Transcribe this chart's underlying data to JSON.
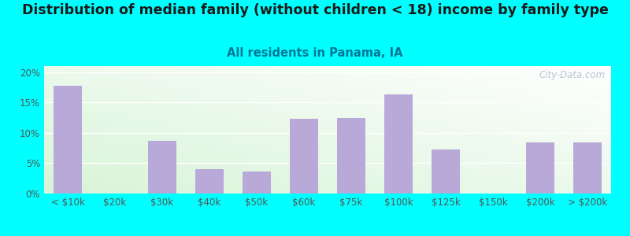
{
  "title": "Distribution of median family (without children < 18) income by family type",
  "subtitle": "All residents in Panama, IA",
  "categories": [
    "< $10k",
    "$20k",
    "$30k",
    "$40k",
    "$50k",
    "$60k",
    "$75k",
    "$100k",
    "$125k",
    "$150k",
    "$200k",
    "> $200k"
  ],
  "values": [
    17.8,
    0.0,
    8.7,
    4.0,
    3.6,
    12.3,
    12.5,
    16.3,
    7.3,
    0.0,
    8.4,
    8.4
  ],
  "bar_color": "#b8a9d9",
  "background_color": "#00FFFF",
  "title_color": "#1a1a1a",
  "subtitle_color": "#007799",
  "tick_color": "#555555",
  "grid_color": "#cccccc",
  "watermark_color": "#aabbcc",
  "ylim": [
    0,
    21
  ],
  "yticks": [
    0,
    5,
    10,
    15,
    20
  ],
  "ytick_labels": [
    "0%",
    "5%",
    "10%",
    "15%",
    "20%"
  ],
  "title_fontsize": 12.5,
  "subtitle_fontsize": 10.5,
  "tick_fontsize": 8.5,
  "grad_colors": [
    "#e8f8e8",
    "#f8fffc",
    "#ffffff"
  ],
  "bar_width": 0.6
}
